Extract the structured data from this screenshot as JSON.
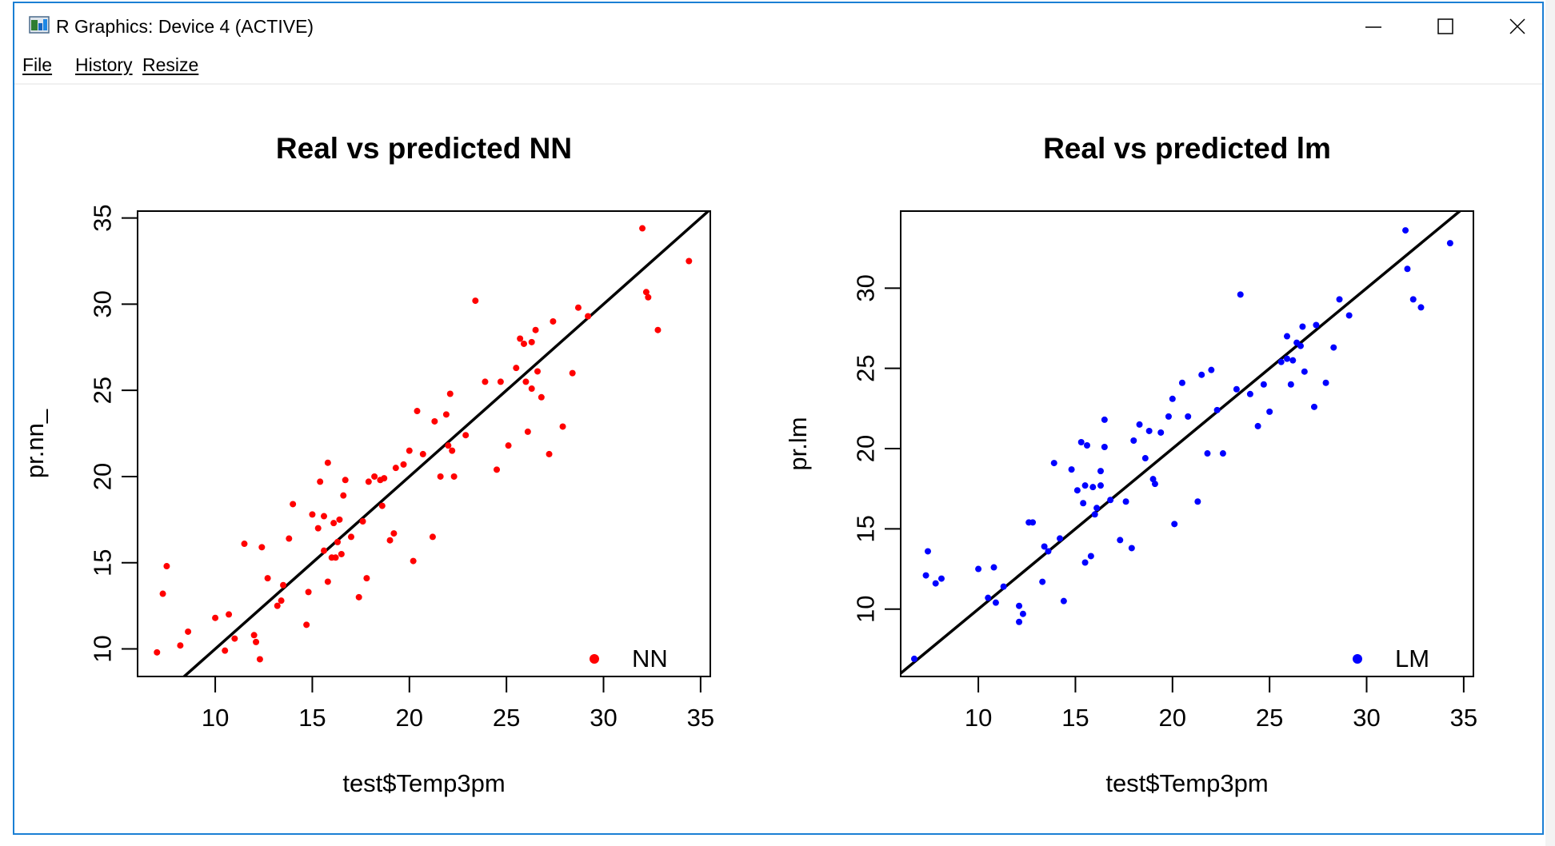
{
  "window": {
    "title": "R Graphics: Device 4 (ACTIVE)",
    "menu": [
      "File",
      "History",
      "Resize"
    ]
  },
  "chart_data": [
    {
      "type": "scatter",
      "title": "Real vs predicted NN",
      "xlabel": "test$Temp3pm",
      "ylabel": "pr.nn_",
      "xlim": [
        6,
        35.5
      ],
      "ylim": [
        8.4,
        35.4
      ],
      "xticks": [
        10,
        15,
        20,
        25,
        30,
        35
      ],
      "yticks": [
        10,
        15,
        20,
        25,
        30,
        35
      ],
      "grid": false,
      "legend": {
        "label": "NN",
        "position": "bottom-right"
      },
      "point_color": "#ff0000",
      "reference_line": {
        "slope": 1,
        "intercept": 0,
        "color": "#000000"
      },
      "points": [
        [
          7,
          9.8
        ],
        [
          7.3,
          13.2
        ],
        [
          7.5,
          14.8
        ],
        [
          8.2,
          10.2
        ],
        [
          8.6,
          11
        ],
        [
          10,
          11.8
        ],
        [
          10.5,
          9.9
        ],
        [
          10.7,
          12
        ],
        [
          11,
          10.6
        ],
        [
          11.5,
          16.1
        ],
        [
          12,
          10.8
        ],
        [
          12.1,
          10.4
        ],
        [
          12.3,
          9.4
        ],
        [
          12.4,
          15.9
        ],
        [
          12.7,
          14.1
        ],
        [
          13.2,
          12.5
        ],
        [
          13.4,
          12.8
        ],
        [
          13.5,
          13.7
        ],
        [
          13.8,
          16.4
        ],
        [
          14,
          18.4
        ],
        [
          14.7,
          11.4
        ],
        [
          14.8,
          13.3
        ],
        [
          15,
          17.8
        ],
        [
          15.3,
          17
        ],
        [
          15.4,
          19.7
        ],
        [
          15.6,
          17.7
        ],
        [
          15.6,
          15.7
        ],
        [
          15.8,
          20.8
        ],
        [
          15.8,
          13.9
        ],
        [
          16,
          15.3
        ],
        [
          16.1,
          17.3
        ],
        [
          16.2,
          15.3
        ],
        [
          16.3,
          16.2
        ],
        [
          16.4,
          17.5
        ],
        [
          16.5,
          15.5
        ],
        [
          16.6,
          18.9
        ],
        [
          16.7,
          19.8
        ],
        [
          17,
          16.5
        ],
        [
          17.4,
          13
        ],
        [
          17.6,
          17.4
        ],
        [
          17.8,
          14.1
        ],
        [
          17.9,
          19.7
        ],
        [
          18.2,
          20
        ],
        [
          18.5,
          19.8
        ],
        [
          18.6,
          18.3
        ],
        [
          18.7,
          19.9
        ],
        [
          19,
          16.3
        ],
        [
          19.2,
          16.7
        ],
        [
          19.3,
          20.5
        ],
        [
          19.7,
          20.7
        ],
        [
          20,
          21.5
        ],
        [
          20.2,
          15.1
        ],
        [
          20.4,
          23.8
        ],
        [
          20.7,
          21.3
        ],
        [
          21.2,
          16.5
        ],
        [
          21.3,
          23.2
        ],
        [
          21.6,
          20
        ],
        [
          21.9,
          23.6
        ],
        [
          22,
          21.8
        ],
        [
          22.1,
          24.8
        ],
        [
          22.2,
          21.5
        ],
        [
          22.3,
          20
        ],
        [
          22.9,
          22.4
        ],
        [
          23.4,
          30.2
        ],
        [
          23.9,
          25.5
        ],
        [
          24.5,
          20.4
        ],
        [
          24.7,
          25.5
        ],
        [
          25.1,
          21.8
        ],
        [
          25.5,
          26.3
        ],
        [
          25.7,
          28
        ],
        [
          25.9,
          27.7
        ],
        [
          26,
          25.5
        ],
        [
          26.1,
          22.6
        ],
        [
          26.3,
          27.8
        ],
        [
          26.3,
          25.1
        ],
        [
          26.5,
          28.5
        ],
        [
          26.6,
          26.1
        ],
        [
          26.8,
          24.6
        ],
        [
          27.2,
          21.3
        ],
        [
          27.4,
          29
        ],
        [
          27.9,
          22.9
        ],
        [
          28.4,
          26
        ],
        [
          28.7,
          29.8
        ],
        [
          29.2,
          29.3
        ],
        [
          32,
          34.4
        ],
        [
          32.2,
          30.7
        ],
        [
          32.3,
          30.4
        ],
        [
          32.8,
          28.5
        ],
        [
          34.4,
          32.5
        ]
      ]
    },
    {
      "type": "scatter",
      "title": "Real vs predicted lm",
      "xlabel": "test$Temp3pm",
      "ylabel": "pr.lm",
      "xlim": [
        6,
        35.5
      ],
      "ylim": [
        5.8,
        34.8
      ],
      "xticks": [
        10,
        15,
        20,
        25,
        30,
        35
      ],
      "yticks": [
        10,
        15,
        20,
        25,
        30
      ],
      "grid": false,
      "legend": {
        "label": "LM",
        "position": "bottom-right"
      },
      "point_color": "#0000ff",
      "reference_line": {
        "slope": 1,
        "intercept": 0,
        "color": "#000000"
      },
      "points": [
        [
          6.7,
          6.9
        ],
        [
          7.3,
          12.1
        ],
        [
          7.4,
          13.6
        ],
        [
          7.8,
          11.6
        ],
        [
          8.1,
          11.9
        ],
        [
          10,
          12.5
        ],
        [
          10.5,
          10.7
        ],
        [
          10.8,
          12.6
        ],
        [
          10.9,
          10.4
        ],
        [
          11.3,
          11.4
        ],
        [
          12.1,
          10.2
        ],
        [
          12.1,
          9.2
        ],
        [
          12.3,
          9.7
        ],
        [
          12.6,
          15.4
        ],
        [
          12.8,
          15.4
        ],
        [
          13.3,
          11.7
        ],
        [
          13.4,
          13.9
        ],
        [
          13.6,
          13.6
        ],
        [
          13.9,
          19.1
        ],
        [
          14.2,
          14.4
        ],
        [
          14.4,
          10.5
        ],
        [
          14.8,
          18.7
        ],
        [
          15.1,
          17.4
        ],
        [
          15.3,
          20.4
        ],
        [
          15.4,
          16.6
        ],
        [
          15.5,
          17.7
        ],
        [
          15.6,
          20.2
        ],
        [
          15.5,
          12.9
        ],
        [
          15.8,
          13.3
        ],
        [
          15.9,
          17.6
        ],
        [
          16,
          15.9
        ],
        [
          16.1,
          16.3
        ],
        [
          16.3,
          17.7
        ],
        [
          16.3,
          18.6
        ],
        [
          16.5,
          20.1
        ],
        [
          16.5,
          21.8
        ],
        [
          16.8,
          16.8
        ],
        [
          17.3,
          14.3
        ],
        [
          17.6,
          16.7
        ],
        [
          17.9,
          13.8
        ],
        [
          18,
          20.5
        ],
        [
          18.3,
          21.5
        ],
        [
          18.6,
          19.4
        ],
        [
          18.8,
          21.1
        ],
        [
          19,
          18.1
        ],
        [
          19.1,
          17.8
        ],
        [
          19.4,
          21
        ],
        [
          19.8,
          22
        ],
        [
          20,
          23.1
        ],
        [
          20.1,
          15.3
        ],
        [
          20.5,
          24.1
        ],
        [
          20.8,
          22
        ],
        [
          21.3,
          16.7
        ],
        [
          21.5,
          24.6
        ],
        [
          21.8,
          19.7
        ],
        [
          22,
          24.9
        ],
        [
          22.3,
          22.4
        ],
        [
          22.6,
          19.7
        ],
        [
          23.3,
          23.7
        ],
        [
          23.5,
          29.6
        ],
        [
          24,
          23.4
        ],
        [
          24.4,
          21.4
        ],
        [
          24.7,
          24
        ],
        [
          25,
          22.3
        ],
        [
          25.6,
          25.4
        ],
        [
          25.9,
          27
        ],
        [
          26.1,
          24
        ],
        [
          26.2,
          25.5
        ],
        [
          26.4,
          26.6
        ],
        [
          26.6,
          26.4
        ],
        [
          26.8,
          24.8
        ],
        [
          27.3,
          22.6
        ],
        [
          27.4,
          27.7
        ],
        [
          27.9,
          24.1
        ],
        [
          28.3,
          26.3
        ],
        [
          28.6,
          29.3
        ],
        [
          29.1,
          28.3
        ],
        [
          32,
          33.6
        ],
        [
          32.1,
          31.2
        ],
        [
          32.4,
          29.3
        ],
        [
          32.8,
          28.8
        ],
        [
          34.3,
          32.8
        ],
        [
          26.7,
          27.6
        ],
        [
          25.9,
          25.6
        ]
      ]
    }
  ]
}
